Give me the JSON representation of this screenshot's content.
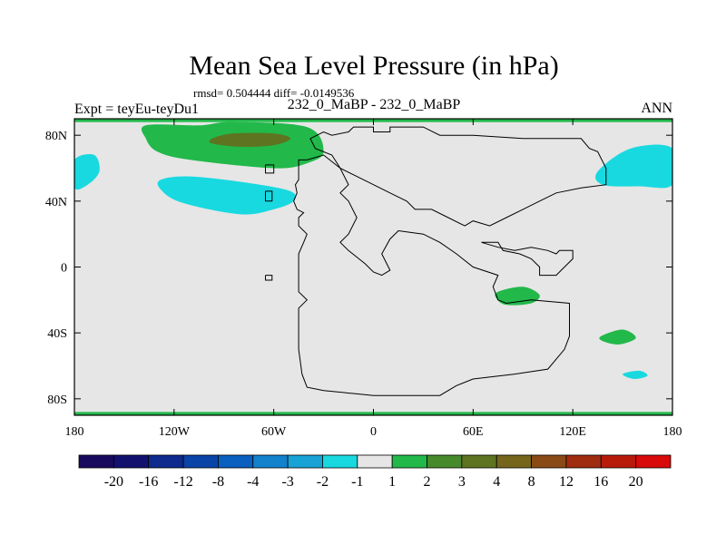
{
  "chart_data": {
    "type": "contour-map",
    "title": "Mean Sea Level Pressure (in hPa)",
    "stats": "rmsd= 0.504444 diff= -0.0149536",
    "subtitle_left": "Expt = teyEu-teyDu1",
    "subtitle_center": "232_0_MaBP - 232_0_MaBP",
    "subtitle_right": "ANN",
    "x_axis": {
      "min": -180,
      "max": 180,
      "ticks": [
        {
          "value": -180,
          "label": "180"
        },
        {
          "value": -120,
          "label": "120W"
        },
        {
          "value": -60,
          "label": "60W"
        },
        {
          "value": 0,
          "label": "0"
        },
        {
          "value": 60,
          "label": "60E"
        },
        {
          "value": 120,
          "label": "120E"
        },
        {
          "value": 180,
          "label": "180"
        }
      ]
    },
    "y_axis": {
      "min": -90,
      "max": 90,
      "ticks": [
        {
          "value": 80,
          "label": "80N"
        },
        {
          "value": 40,
          "label": "40N"
        },
        {
          "value": 0,
          "label": "0"
        },
        {
          "value": -40,
          "label": "40S"
        },
        {
          "value": -80,
          "label": "80S"
        }
      ]
    },
    "colorbar": {
      "colors": [
        "#1a0a5e",
        "#12126e",
        "#0d2a8c",
        "#0a44a6",
        "#0a60bf",
        "#1282cc",
        "#17a3d6",
        "#19d9e0",
        "#e6e6e6",
        "#22b84a",
        "#478a2c",
        "#5e7420",
        "#76661c",
        "#8a4a16",
        "#a02c10",
        "#b81a0a",
        "#d90a0a"
      ],
      "labels": [
        "-20",
        "-16",
        "-12",
        "-8",
        "-4",
        "-3",
        "-2",
        "-1",
        "1",
        "2",
        "3",
        "4",
        "8",
        "12",
        "16",
        "20"
      ]
    },
    "background_color": "#e6e6e6",
    "regions": [
      {
        "class": "2",
        "color": "#22b84a",
        "points": [
          [
            -137,
            86
          ],
          [
            -105,
            86
          ],
          [
            -85,
            88
          ],
          [
            -40,
            85
          ],
          [
            -30,
            70
          ],
          [
            -40,
            63
          ],
          [
            -60,
            60
          ],
          [
            -110,
            65
          ],
          [
            -130,
            70
          ],
          [
            -137,
            78
          ]
        ]
      },
      {
        "class": "4",
        "color": "#5e7420",
        "points": [
          [
            -97,
            78
          ],
          [
            -85,
            81
          ],
          [
            -60,
            81
          ],
          [
            -50,
            78
          ],
          [
            -60,
            74
          ],
          [
            -80,
            73
          ],
          [
            -97,
            75
          ]
        ]
      },
      {
        "class": "-1",
        "color": "#19d9e0",
        "points": [
          [
            -128,
            53
          ],
          [
            -110,
            55
          ],
          [
            -75,
            51
          ],
          [
            -50,
            46
          ],
          [
            -48,
            40
          ],
          [
            -60,
            35
          ],
          [
            -80,
            32
          ],
          [
            -115,
            39
          ],
          [
            -128,
            47
          ]
        ]
      },
      {
        "class": "-1",
        "color": "#19d9e0",
        "points": [
          [
            -180,
            65
          ],
          [
            -168,
            68
          ],
          [
            -165,
            58
          ],
          [
            -172,
            50
          ],
          [
            -180,
            48
          ]
        ]
      },
      {
        "class": "-1",
        "color": "#19d9e0",
        "points": [
          [
            135,
            58
          ],
          [
            155,
            72
          ],
          [
            180,
            72
          ],
          [
            180,
            50
          ],
          [
            160,
            49
          ],
          [
            138,
            50
          ]
        ]
      },
      {
        "class": "2",
        "color": "#22b84a",
        "points": [
          [
            75,
            -15
          ],
          [
            90,
            -12
          ],
          [
            100,
            -17
          ],
          [
            95,
            -22
          ],
          [
            80,
            -23
          ],
          [
            74,
            -19
          ]
        ]
      },
      {
        "class": "2",
        "color": "#22b84a",
        "points": [
          [
            137,
            -42
          ],
          [
            150,
            -38
          ],
          [
            158,
            -43
          ],
          [
            148,
            -47
          ],
          [
            138,
            -45
          ]
        ]
      },
      {
        "class": "-1",
        "color": "#19d9e0",
        "points": [
          [
            150,
            -65
          ],
          [
            160,
            -63
          ],
          [
            165,
            -66
          ],
          [
            157,
            -68
          ]
        ]
      },
      {
        "class": "2",
        "color": "#22b84a",
        "points": [
          [
            -180,
            90
          ],
          [
            180,
            90
          ],
          [
            180,
            88
          ],
          [
            -180,
            88
          ]
        ]
      },
      {
        "class": "2",
        "color": "#22b84a",
        "points": [
          [
            -180,
            -88
          ],
          [
            180,
            -88
          ],
          [
            180,
            -90
          ],
          [
            -180,
            -90
          ]
        ]
      }
    ],
    "coastlines": [
      [
        [
          -40,
          65
        ],
        [
          -45,
          65
        ],
        [
          -45,
          55
        ],
        [
          -45,
          53
        ],
        [
          -47,
          50
        ],
        [
          -46,
          45
        ],
        [
          -48,
          40
        ],
        [
          -46,
          35
        ],
        [
          -42,
          33
        ],
        [
          -45,
          30
        ],
        [
          -45,
          25
        ],
        [
          -40,
          20
        ],
        [
          -42,
          15
        ],
        [
          -45,
          8
        ],
        [
          -45,
          -15
        ],
        [
          -40,
          -20
        ],
        [
          -45,
          -25
        ],
        [
          -45,
          -50
        ],
        [
          -43,
          -65
        ],
        [
          -40,
          -73
        ],
        [
          -30,
          -75
        ],
        [
          -10,
          -77
        ],
        [
          0,
          -78
        ],
        [
          40,
          -78
        ],
        [
          50,
          -72
        ],
        [
          60,
          -68
        ],
        [
          85,
          -65
        ],
        [
          105,
          -62
        ],
        [
          115,
          -50
        ],
        [
          118,
          -42
        ],
        [
          118,
          -22
        ],
        [
          95,
          -20
        ],
        [
          80,
          -22
        ],
        [
          75,
          -20
        ],
        [
          72,
          -12
        ],
        [
          75,
          -5
        ],
        [
          60,
          0
        ],
        [
          50,
          8
        ],
        [
          40,
          15
        ],
        [
          30,
          20
        ],
        [
          15,
          22
        ],
        [
          10,
          17
        ],
        [
          5,
          8
        ],
        [
          10,
          -2
        ],
        [
          5,
          -5
        ],
        [
          0,
          -3
        ],
        [
          -5,
          2
        ],
        [
          -15,
          10
        ],
        [
          -20,
          15
        ],
        [
          -15,
          20
        ],
        [
          -10,
          30
        ],
        [
          -15,
          40
        ],
        [
          -20,
          45
        ],
        [
          -15,
          50
        ],
        [
          -20,
          60
        ],
        [
          -25,
          68
        ],
        [
          -35,
          72
        ],
        [
          -38,
          78
        ],
        [
          -30,
          82
        ],
        [
          -25,
          80
        ],
        [
          -15,
          82
        ],
        [
          -12,
          85
        ],
        [
          0,
          85
        ],
        [
          0,
          82
        ],
        [
          10,
          82
        ],
        [
          10,
          85
        ],
        [
          25,
          85
        ],
        [
          30,
          85
        ],
        [
          40,
          80
        ],
        [
          60,
          80
        ],
        [
          90,
          78
        ],
        [
          125,
          78
        ],
        [
          130,
          72
        ],
        [
          135,
          70
        ],
        [
          140,
          60
        ],
        [
          140,
          50
        ],
        [
          125,
          48
        ],
        [
          110,
          45
        ],
        [
          100,
          40
        ],
        [
          90,
          35
        ],
        [
          80,
          30
        ],
        [
          70,
          25
        ],
        [
          60,
          28
        ],
        [
          55,
          25
        ],
        [
          45,
          30
        ],
        [
          35,
          35
        ],
        [
          25,
          35
        ],
        [
          20,
          40
        ],
        [
          10,
          45
        ],
        [
          0,
          50
        ],
        [
          -10,
          55
        ],
        [
          -20,
          60
        ],
        [
          -30,
          68
        ],
        [
          -40,
          65
        ]
      ],
      [
        [
          65,
          15
        ],
        [
          75,
          15
        ],
        [
          78,
          10
        ],
        [
          88,
          8
        ],
        [
          95,
          5
        ],
        [
          100,
          0
        ],
        [
          100,
          -5
        ],
        [
          110,
          -5
        ],
        [
          115,
          0
        ],
        [
          120,
          5
        ],
        [
          120,
          10
        ],
        [
          112,
          10
        ],
        [
          110,
          8
        ],
        [
          105,
          10
        ],
        [
          95,
          12
        ],
        [
          85,
          10
        ],
        [
          75,
          12
        ],
        [
          65,
          15
        ]
      ],
      [
        [
          -65,
          62
        ],
        [
          -60,
          62
        ],
        [
          -60,
          57
        ],
        [
          -65,
          57
        ],
        [
          -65,
          62
        ]
      ],
      [
        [
          -65,
          46
        ],
        [
          -61,
          46
        ],
        [
          -61,
          40
        ],
        [
          -65,
          40
        ],
        [
          -65,
          46
        ]
      ],
      [
        [
          -65,
          -5
        ],
        [
          -61,
          -5
        ],
        [
          -61,
          -8
        ],
        [
          -65,
          -8
        ],
        [
          -65,
          -5
        ]
      ]
    ]
  }
}
